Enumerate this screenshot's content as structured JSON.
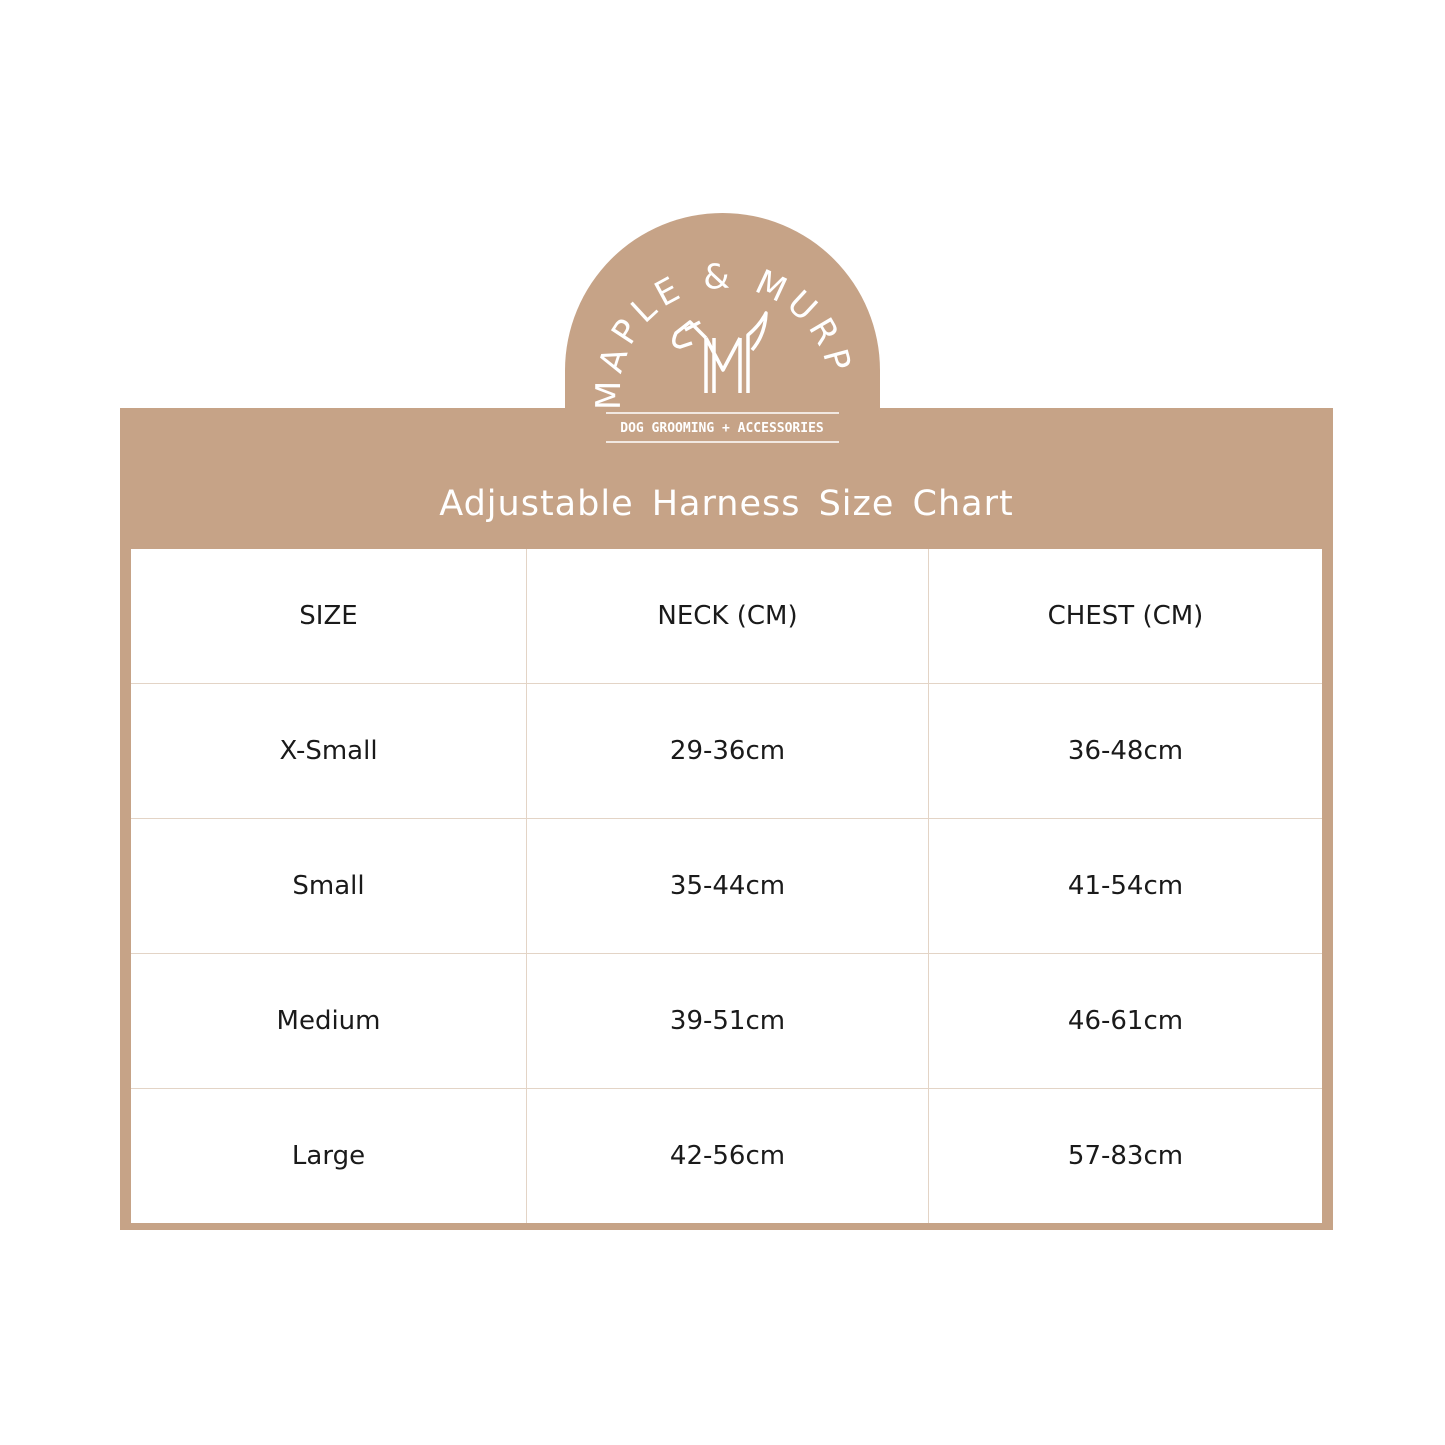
{
  "brand": {
    "name_left": "MAPLE &",
    "name_right": "MURPH",
    "tagline": "DOG GROOMING + ACCESSORIES",
    "color": "#c6a387"
  },
  "title": "Adjustable Harness Size Chart",
  "table": {
    "headers": [
      "SIZE",
      "NECK (CM)",
      "CHEST (CM)"
    ],
    "rows": [
      [
        "X-Small",
        "29-36cm",
        "36-48cm"
      ],
      [
        "Small",
        "35-44cm",
        "41-54cm"
      ],
      [
        "Medium",
        "39-51cm",
        "46-61cm"
      ],
      [
        "Large",
        "42-56cm",
        "57-83cm"
      ]
    ]
  }
}
